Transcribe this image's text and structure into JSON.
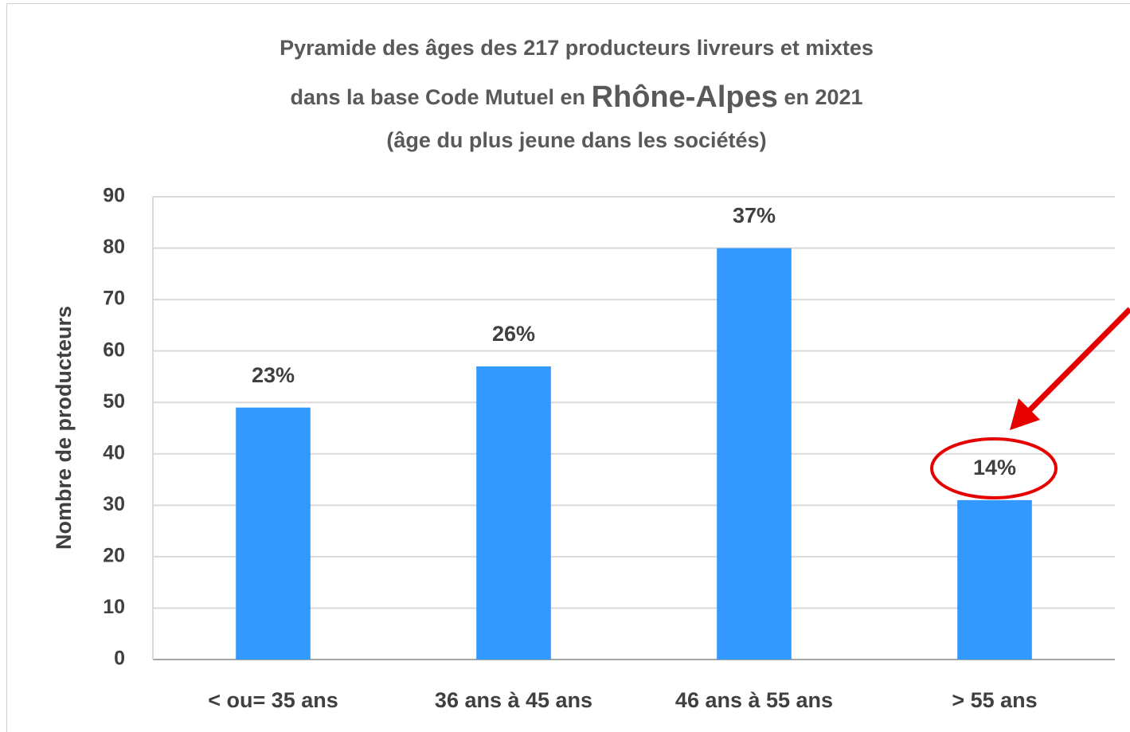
{
  "chart_data": {
    "type": "bar",
    "title": {
      "line1": "Pyramide des âges des 217 producteurs livreurs et mixtes",
      "line2_start": "dans la base Code Mutuel en",
      "line2_highlight": "Rhône-Alpes",
      "line2_end": "en 2021",
      "line3": "(âge du plus jeune dans les sociétés)"
    },
    "y_label": "Nombre de producteurs",
    "categories": [
      "< ou= 35 ans",
      "36 ans à 45 ans",
      "46 ans à 55 ans",
      ">  55 ans"
    ],
    "values": [
      49,
      57,
      80,
      31
    ],
    "value_labels": [
      "23%",
      "26%",
      "37%",
      "14%"
    ],
    "color": "#3399ff",
    "ylim": [
      0,
      90
    ],
    "yticks": [
      0,
      10,
      20,
      30,
      40,
      50,
      60,
      70,
      80,
      90
    ],
    "grid": true
  }
}
